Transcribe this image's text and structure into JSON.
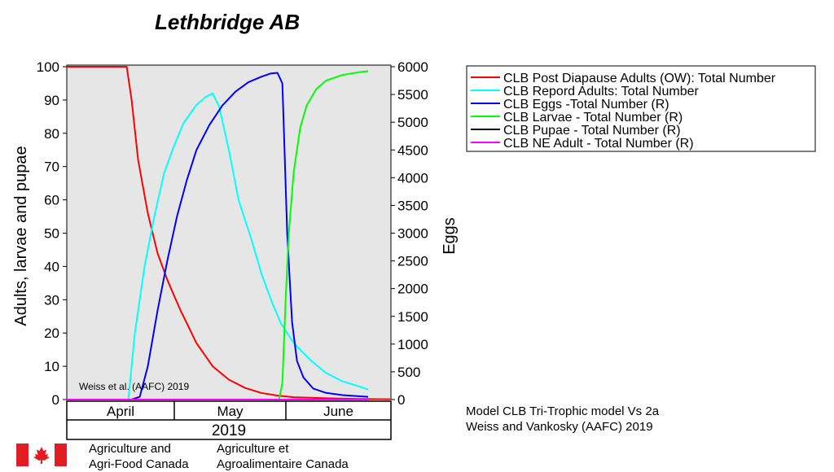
{
  "title": "Lethbridge AB",
  "watermark": "Weiss et al. (AAFC) 2019",
  "model_caption": [
    "Model CLB Tri-Trophic model Vs 2a",
    "Weiss and Vankosky  (AAFC) 2019"
  ],
  "logo": {
    "icon": "canada-flag-icon",
    "english": [
      "Agriculture and",
      "Agri-Food Canada"
    ],
    "french": [
      "Agriculture et",
      "Agroalimentaire Canada"
    ]
  },
  "colors": {
    "ow_adults": "#ff0000",
    "repro_adults": "#00ffff",
    "eggs": "#0000ff",
    "larvae": "#00ff00",
    "pupae": "#000000",
    "ne_adults": "#ff00ff",
    "plot_bg": "#e6e6e6"
  },
  "chart_data": {
    "type": "line",
    "xlabel": "",
    "ylabel": "Adults, larvae and pupae",
    "y2label": "Eggs",
    "ylim": [
      0,
      100
    ],
    "y2lim": [
      0,
      6000
    ],
    "yticks": [
      "0",
      "10",
      "20",
      "30",
      "40",
      "50",
      "60",
      "70",
      "80",
      "90",
      "100"
    ],
    "y2ticks": [
      "0",
      "500",
      "1000",
      "1500",
      "2000",
      "2500",
      "3000",
      "3500",
      "4000",
      "4500",
      "5000",
      "5500",
      "6000"
    ],
    "xlim": [
      0,
      100
    ],
    "months": [
      {
        "label": "April",
        "start": 0,
        "end": 33
      },
      {
        "label": "May",
        "start": 33,
        "end": 67
      },
      {
        "label": "June",
        "start": 67,
        "end": 100
      }
    ],
    "year": "2019",
    "grid": false,
    "legend_position": "right",
    "series": [
      {
        "name": "CLB Post Diapause Adults (OW): Total Number",
        "axis": "left",
        "color_key": "ow_adults",
        "points": [
          [
            0,
            100
          ],
          [
            18.5,
            100
          ],
          [
            20,
            90
          ],
          [
            22,
            72
          ],
          [
            25,
            56
          ],
          [
            28,
            44
          ],
          [
            31,
            36
          ],
          [
            35,
            27
          ],
          [
            40,
            17
          ],
          [
            45,
            10
          ],
          [
            50,
            6
          ],
          [
            55,
            3.5
          ],
          [
            60,
            2
          ],
          [
            65,
            1.2
          ],
          [
            70,
            0.7
          ],
          [
            80,
            0.4
          ],
          [
            90,
            0.2
          ],
          [
            100,
            0.1
          ]
        ]
      },
      {
        "name": "CLB  Repord Adults: Total Number",
        "axis": "left",
        "color_key": "repro_adults",
        "points": [
          [
            0,
            0
          ],
          [
            18.5,
            0
          ],
          [
            19,
            0
          ],
          [
            21,
            20
          ],
          [
            24,
            40
          ],
          [
            27,
            55
          ],
          [
            30,
            68
          ],
          [
            33,
            76
          ],
          [
            36,
            83
          ],
          [
            40,
            88.5
          ],
          [
            43,
            91
          ],
          [
            45,
            92
          ],
          [
            47,
            88
          ],
          [
            50,
            75
          ],
          [
            53,
            60
          ],
          [
            57,
            48
          ],
          [
            60,
            38
          ],
          [
            63,
            30
          ],
          [
            66,
            23
          ],
          [
            70,
            17
          ],
          [
            75,
            12
          ],
          [
            80,
            8
          ],
          [
            85,
            5.5
          ],
          [
            90,
            4
          ],
          [
            93,
            3
          ]
        ]
      },
      {
        "name": "CLB Eggs -Total Number (R)",
        "axis": "right",
        "color_key": "eggs",
        "points": [
          [
            0,
            0
          ],
          [
            20,
            0
          ],
          [
            22.5,
            50
          ],
          [
            25,
            600
          ],
          [
            28,
            1600
          ],
          [
            31,
            2500
          ],
          [
            34,
            3300
          ],
          [
            37,
            3950
          ],
          [
            40,
            4500
          ],
          [
            44,
            4950
          ],
          [
            48,
            5300
          ],
          [
            52,
            5550
          ],
          [
            56,
            5720
          ],
          [
            60,
            5820
          ],
          [
            63,
            5880
          ],
          [
            65,
            5890
          ],
          [
            66.5,
            5700
          ],
          [
            67,
            4800
          ],
          [
            68,
            3000
          ],
          [
            69.5,
            1400
          ],
          [
            71,
            700
          ],
          [
            73,
            400
          ],
          [
            76,
            200
          ],
          [
            80,
            120
          ],
          [
            85,
            80
          ],
          [
            90,
            60
          ],
          [
            93,
            50
          ]
        ]
      },
      {
        "name": "CLB Larvae - Total Number (R)",
        "axis": "right",
        "color_key": "larvae",
        "points": [
          [
            0,
            0
          ],
          [
            65.5,
            0
          ],
          [
            66.5,
            300
          ],
          [
            67.5,
            1800
          ],
          [
            68.5,
            3000
          ],
          [
            70,
            4100
          ],
          [
            72,
            4900
          ],
          [
            74,
            5300
          ],
          [
            77,
            5600
          ],
          [
            80,
            5750
          ],
          [
            85,
            5850
          ],
          [
            90,
            5900
          ],
          [
            93,
            5920
          ]
        ]
      },
      {
        "name": "CLB Pupae - Total Number (R)",
        "axis": "right",
        "color_key": "pupae",
        "points": [
          [
            0,
            0
          ],
          [
            93,
            0
          ]
        ]
      },
      {
        "name": "CLB NE Adult - Total Number (R)",
        "axis": "right",
        "color_key": "ne_adults",
        "points": [
          [
            0,
            0
          ],
          [
            93,
            0
          ]
        ]
      }
    ]
  }
}
